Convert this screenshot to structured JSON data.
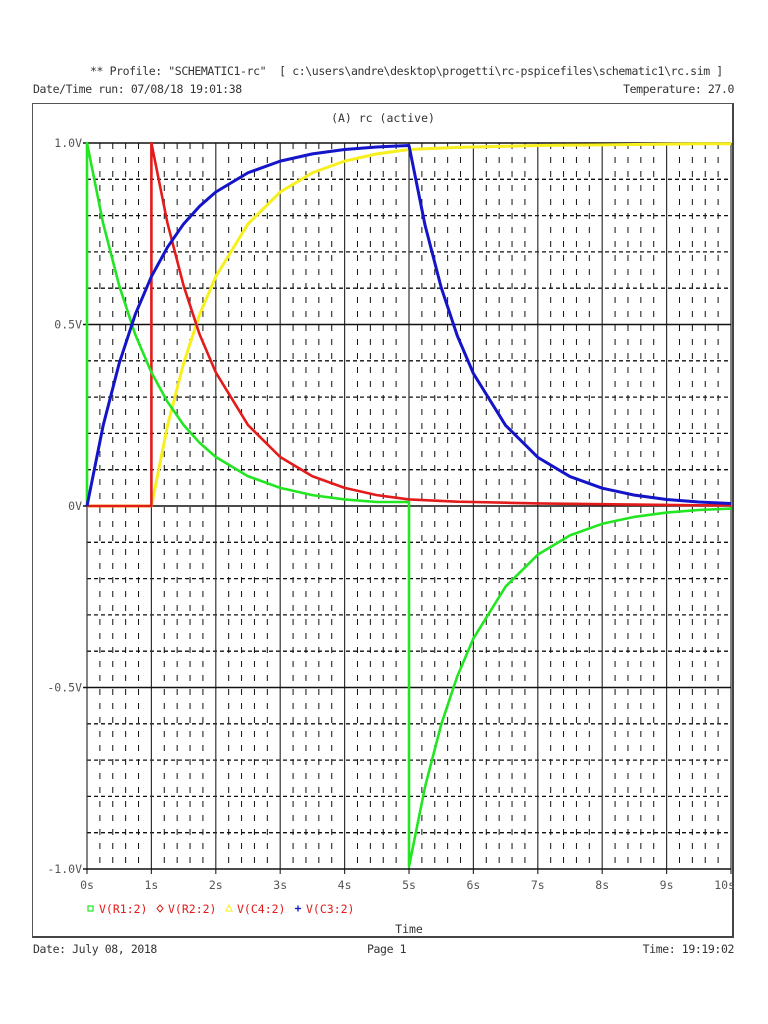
{
  "header": {
    "profile": "** Profile: \"SCHEMATIC1-rc\"  [ c:\\users\\andre\\desktop\\progetti\\rc-pspicefiles\\schematic1\\rc.sim ]",
    "datetime_run": "Date/Time run: 07/08/18 19:01:38",
    "temperature": "Temperature: 27.0"
  },
  "footer": {
    "date": "Date: July 08, 2018",
    "page": "Page 1",
    "time": "Time: 19:19:02"
  },
  "colors": {
    "v_r1": "#22e622",
    "v_r2": "#e31b1b",
    "v_c4": "#f7f01e",
    "v_c3": "#1414c8",
    "legend_text": "#e31b1b",
    "grid": "#000000",
    "axis_label": "#555555"
  },
  "chart_data": {
    "type": "line",
    "title": "(A) rc (active)",
    "xlabel": "Time",
    "ylabel": "",
    "xlim": [
      0,
      10
    ],
    "ylim": [
      -1.0,
      1.0
    ],
    "x_ticks": [
      "0s",
      "1s",
      "2s",
      "3s",
      "4s",
      "5s",
      "6s",
      "7s",
      "8s",
      "9s",
      "10s"
    ],
    "y_ticks": [
      {
        "value": 1.0,
        "label": "1.0V"
      },
      {
        "value": 0.5,
        "label": "0.5V"
      },
      {
        "value": 0.0,
        "label": "0V"
      },
      {
        "value": -0.5,
        "label": "-0.5V"
      },
      {
        "value": -1.0,
        "label": "-1.0V"
      }
    ],
    "grid": {
      "x_major": 1,
      "x_minor": 0.2,
      "y_major": 0.5,
      "y_minor": 0.1
    },
    "legend_position": "bottom-left",
    "x": [
      0,
      0.25,
      0.5,
      0.75,
      1,
      1.25,
      1.5,
      1.75,
      2,
      2.5,
      3,
      3.5,
      4,
      4.5,
      5,
      5.25,
      5.5,
      5.75,
      6,
      6.5,
      7,
      7.5,
      8,
      8.5,
      9,
      9.5,
      10
    ],
    "series": [
      {
        "name": "V(R1:2)",
        "key": "v_r1",
        "marker": "square",
        "values": [
          1.0,
          0.779,
          0.607,
          0.472,
          0.368,
          0.287,
          0.223,
          0.174,
          0.135,
          0.082,
          0.05,
          0.03,
          0.018,
          0.011,
          -0.993,
          -0.773,
          -0.602,
          -0.469,
          -0.365,
          -0.222,
          -0.134,
          -0.081,
          -0.049,
          -0.03,
          -0.018,
          -0.011,
          -0.007
        ]
      },
      {
        "name": "V(R2:2)",
        "key": "v_r2",
        "marker": "diamond",
        "values": [
          0,
          0,
          0,
          0,
          1.0,
          0.779,
          0.607,
          0.472,
          0.368,
          0.223,
          0.135,
          0.082,
          0.05,
          0.03,
          0.018,
          0.016,
          0.014,
          0.012,
          0.011,
          0.009,
          0.007,
          0.006,
          0.005,
          0.004,
          0.003,
          0.002,
          0.002
        ]
      },
      {
        "name": "V(C4:2)",
        "key": "v_c4",
        "marker": "triangle",
        "values": [
          0,
          0,
          0,
          0,
          0,
          0.221,
          0.393,
          0.528,
          0.632,
          0.777,
          0.865,
          0.918,
          0.95,
          0.97,
          0.982,
          0.984,
          0.986,
          0.988,
          0.989,
          0.991,
          0.993,
          0.994,
          0.995,
          0.996,
          0.997,
          0.998,
          0.998
        ]
      },
      {
        "name": "V(C3:2)",
        "key": "v_c3",
        "marker": "plus",
        "values": [
          0,
          0.221,
          0.393,
          0.528,
          0.632,
          0.713,
          0.777,
          0.826,
          0.865,
          0.918,
          0.95,
          0.97,
          0.982,
          0.989,
          0.993,
          0.773,
          0.602,
          0.469,
          0.365,
          0.222,
          0.134,
          0.081,
          0.049,
          0.03,
          0.018,
          0.011,
          0.007
        ]
      }
    ]
  }
}
